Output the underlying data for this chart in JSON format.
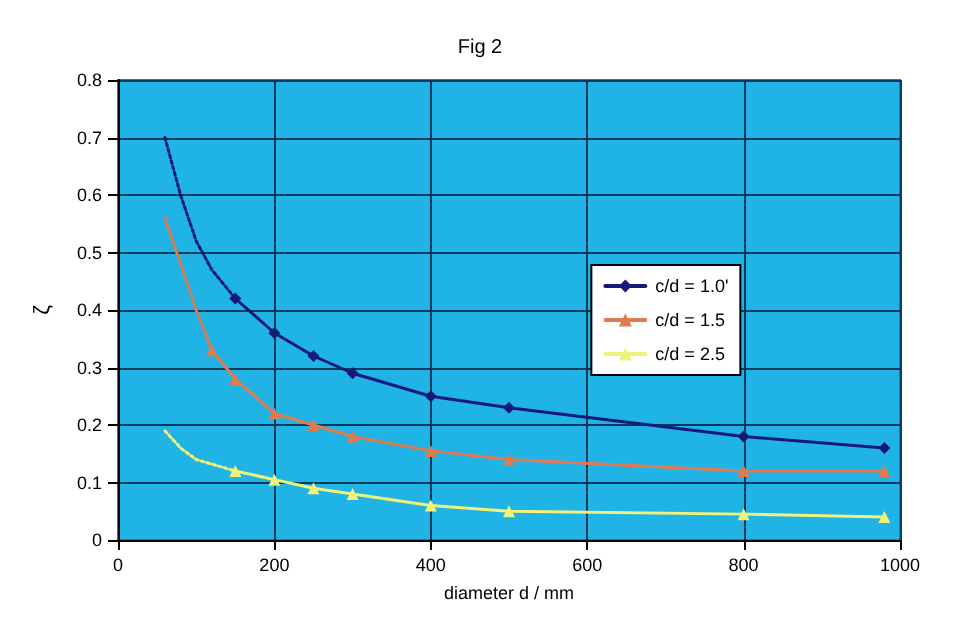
{
  "chart_data": {
    "type": "line",
    "title": "Fig 2",
    "xlabel": "diameter d / mm",
    "ylabel": "ζ",
    "xlim": [
      0,
      1000
    ],
    "xticks": [
      0,
      200,
      400,
      600,
      800,
      1000
    ],
    "ylim": [
      0,
      0.8
    ],
    "yticks": [
      0,
      0.1,
      0.2,
      0.3,
      0.4,
      0.5,
      0.6,
      0.7,
      0.8
    ],
    "grid": true,
    "legend": "right",
    "series": [
      {
        "name": "c/d = 1.0'",
        "color": "#141a78",
        "marker": "diamond",
        "line_style": "solid",
        "x": [
          150,
          200,
          250,
          300,
          400,
          500,
          800,
          980
        ],
        "values": [
          0.42,
          0.36,
          0.32,
          0.29,
          0.25,
          0.23,
          0.18,
          0.16
        ]
      },
      {
        "name": "c/d = 1.5",
        "color": "#e07a50",
        "marker": "triangle",
        "line_style": "solid",
        "x": [
          120,
          150,
          200,
          250,
          300,
          400,
          500,
          800,
          980
        ],
        "values": [
          0.33,
          0.28,
          0.22,
          0.2,
          0.18,
          0.155,
          0.14,
          0.12,
          0.12
        ]
      },
      {
        "name": "c/d = 2.5",
        "color": "#f2f27a",
        "marker": "triangle",
        "line_style": "solid",
        "x": [
          150,
          200,
          250,
          300,
          400,
          500,
          800,
          980
        ],
        "values": [
          0.12,
          0.105,
          0.09,
          0.08,
          0.06,
          0.05,
          0.045,
          0.04
        ]
      },
      {
        "color": "#141a78",
        "marker": "none",
        "line_style": "dotted",
        "x": [
          60,
          80,
          100,
          120,
          150
        ],
        "values": [
          0.7,
          0.6,
          0.52,
          0.47,
          0.42
        ]
      },
      {
        "color": "#e07a50",
        "marker": "none",
        "line_style": "dotted",
        "x": [
          60,
          80,
          100,
          120
        ],
        "values": [
          0.56,
          0.48,
          0.4,
          0.33
        ]
      },
      {
        "color": "#f2f27a",
        "marker": "none",
        "line_style": "dotted",
        "x": [
          60,
          80,
          100,
          150
        ],
        "values": [
          0.19,
          0.16,
          0.14,
          0.12
        ]
      }
    ]
  }
}
